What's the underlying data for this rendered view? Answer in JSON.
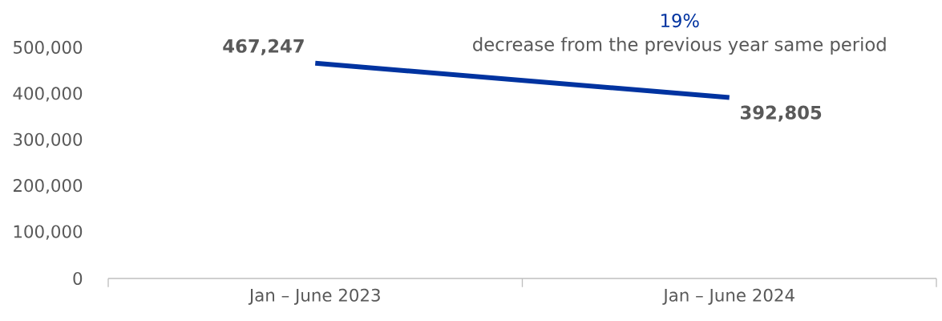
{
  "chart_data": {
    "type": "line",
    "categories": [
      "Jan – June 2023",
      "Jan – June 2024"
    ],
    "series": [
      {
        "color": "#0033a0",
        "values": [
          467247,
          392805
        ],
        "value_labels": [
          "467,247",
          "392,805"
        ]
      }
    ],
    "ylim": [
      0,
      500000
    ],
    "yticks": [
      0,
      {
        "value": 100000,
        "label": "100,000"
      },
      {
        "value": 200000,
        "label": "200,000"
      },
      {
        "value": 300000,
        "label": "300,000"
      },
      {
        "value": 400000,
        "label": "400,000"
      },
      {
        "value": 500000,
        "label": "500,000"
      }
    ],
    "annotations": [
      "19%",
      "decrease from the previous year same period"
    ]
  }
}
